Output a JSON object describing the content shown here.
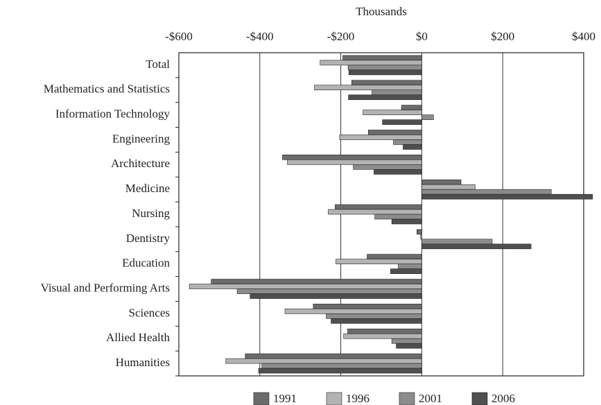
{
  "chart_data": {
    "type": "hbar",
    "x_label": "Thousands",
    "categories": [
      "Total",
      "Mathematics and Statistics",
      "Information Technology",
      "Engineering",
      "Architecture",
      "Medicine",
      "Nursing",
      "Dentistry",
      "Education",
      "Visual and Performing Arts",
      "Sciences",
      "Allied Health",
      "Humanities"
    ],
    "series": [
      {
        "name": "1991",
        "color": "#6b6b6b",
        "values": [
          -195,
          -173,
          -50,
          -132,
          -344,
          97,
          -214,
          -12,
          -135,
          -520,
          -268,
          -183,
          -436
        ]
      },
      {
        "name": "1996",
        "color": "#b3b3b3",
        "values": [
          -251,
          -265,
          -145,
          -203,
          -332,
          132,
          -231,
          -3,
          -212,
          -574,
          -338,
          -193,
          -484
        ]
      },
      {
        "name": "2001",
        "color": "#8c8c8c",
        "values": [
          -182,
          -123,
          29,
          -70,
          -169,
          320,
          -116,
          174,
          -58,
          -456,
          -236,
          -74,
          -395
        ]
      },
      {
        "name": "2006",
        "color": "#4f4f4f",
        "values": [
          -180,
          -181,
          -97,
          -46,
          -118,
          422,
          -74,
          270,
          -77,
          -424,
          -224,
          -63,
          -403
        ]
      }
    ],
    "xlim": [
      -600,
      400
    ],
    "xticks": [
      {
        "value": -600,
        "label": "-$600"
      },
      {
        "value": -400,
        "label": "-$400"
      },
      {
        "value": -200,
        "label": "-$200"
      },
      {
        "value": 0,
        "label": "$0"
      },
      {
        "value": 200,
        "label": "$200"
      },
      {
        "value": 400,
        "label": "$400"
      }
    ],
    "grid": true
  }
}
